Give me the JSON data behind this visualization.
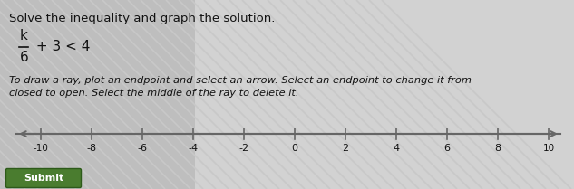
{
  "title": "Solve the inequality and gra​ph the solution.",
  "inequality_numerator": "k",
  "inequality_denominator": "6",
  "inequality_suffix": " + 3 < 4",
  "instruction_line1": "To draw a ray, plot an endpoint and select an arrow. Select an endpoint to change it from",
  "instruction_line2": "closed to open. Select the middle of the ray to delete it.",
  "tick_positions": [
    -10,
    -8,
    -6,
    -4,
    -2,
    0,
    2,
    4,
    6,
    8,
    10
  ],
  "tick_labels": [
    "-10",
    "-8",
    "-6",
    "-4",
    "-2",
    "0",
    "2",
    "4",
    "6",
    "8",
    "10"
  ],
  "bg_left_color": "#b8b8b8",
  "bg_right_color": "#d8d8d8",
  "stripe_color": "#c8c8c8",
  "submit_color": "#4a7c2f",
  "submit_text": "Submit",
  "number_line_color": "#666666",
  "text_color": "#111111",
  "figsize": [
    6.33,
    2.09
  ],
  "dpi": 100
}
